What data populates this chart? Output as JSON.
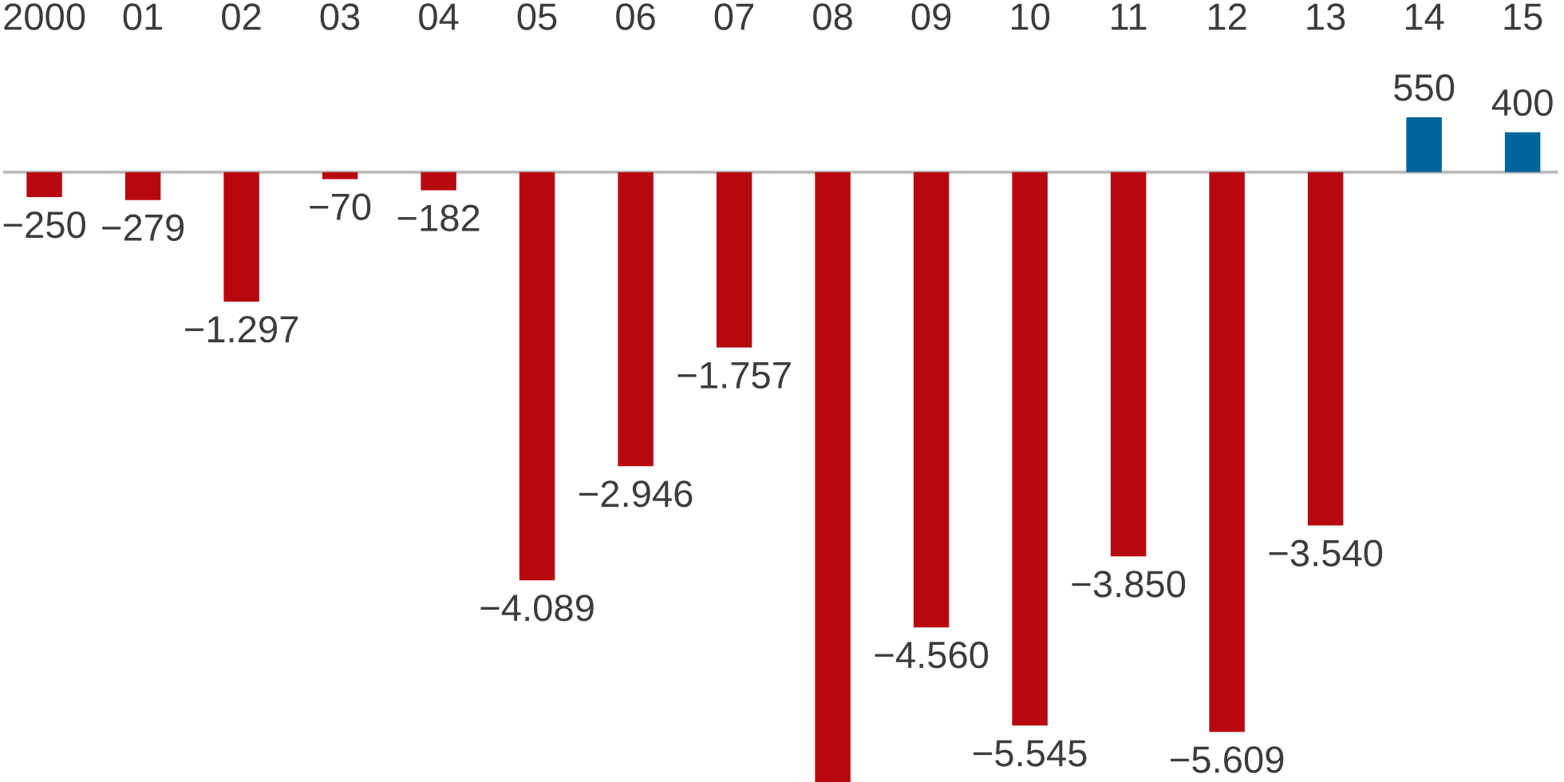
{
  "chart_data": {
    "type": "bar",
    "categories": [
      "2000",
      "01",
      "02",
      "03",
      "04",
      "05",
      "06",
      "07",
      "08",
      "09",
      "10",
      "11",
      "12",
      "13",
      "14",
      "15"
    ],
    "values": [
      -250,
      -279,
      -1297,
      -70,
      -182,
      -4089,
      -2946,
      -1757,
      -6110,
      -4560,
      -5545,
      -3850,
      -5609,
      -3540,
      550,
      400
    ],
    "colors": [
      "#b8080f",
      "#b8080f",
      "#b8080f",
      "#b8080f",
      "#b8080f",
      "#b8080f",
      "#b8080f",
      "#b8080f",
      "#b8080f",
      "#b8080f",
      "#b8080f",
      "#b8080f",
      "#b8080f",
      "#b8080f",
      "#00659b",
      "#00659b"
    ],
    "value_labels": [
      "−250",
      "−279",
      "−1.297",
      "−70",
      "−182",
      "−4.089",
      "−2.946",
      "−1.757",
      null,
      "−4.560",
      "−5.545",
      "−3.850",
      "−5.609",
      "−3.540",
      "550",
      "400"
    ],
    "ref_lines": [
      {
        "axis": "y",
        "value": 0,
        "color": "#bdbdbd"
      }
    ],
    "tick_labels": "x"
  }
}
